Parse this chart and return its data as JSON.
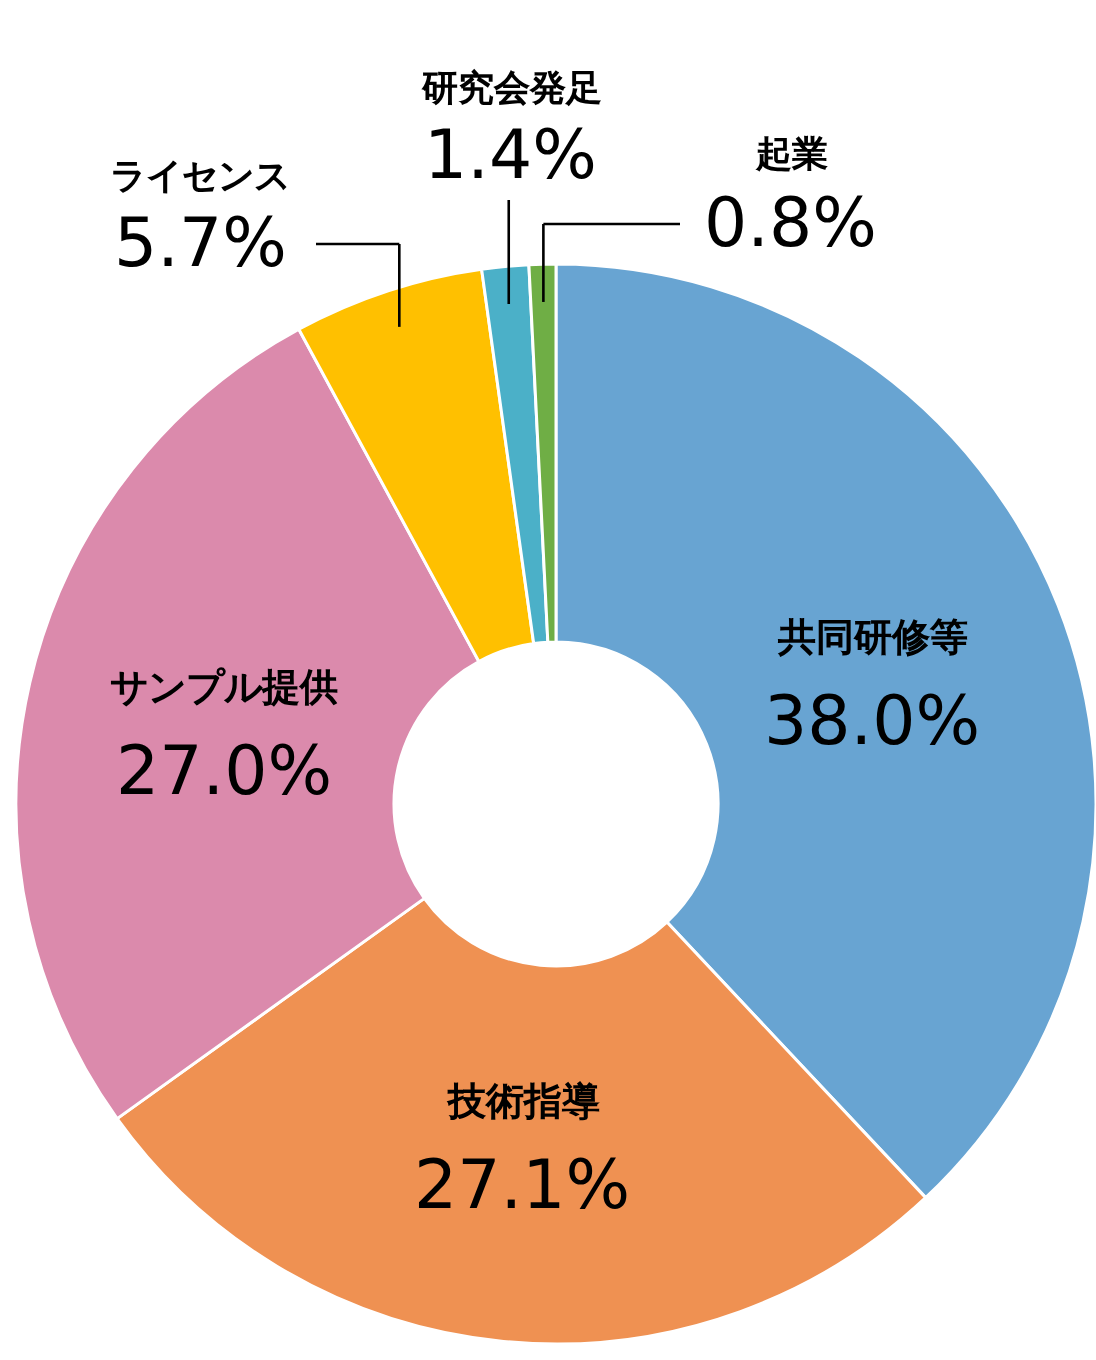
{
  "chart_data": {
    "type": "donut",
    "categories": [
      "共同研修等",
      "技術指導",
      "サンプル提供",
      "ライセンス",
      "研究会発足",
      "起業"
    ],
    "values": [
      38.0,
      27.1,
      27.0,
      5.7,
      1.4,
      0.8
    ],
    "value_labels": [
      "38.0%",
      "27.1%",
      "27.0%",
      "5.7%",
      "1.4%",
      "0.8%"
    ],
    "colors": [
      "#68a4d2",
      "#ef9152",
      "#db8aac",
      "#ffc000",
      "#4bb0c8",
      "#6fae45"
    ],
    "legend": false
  }
}
